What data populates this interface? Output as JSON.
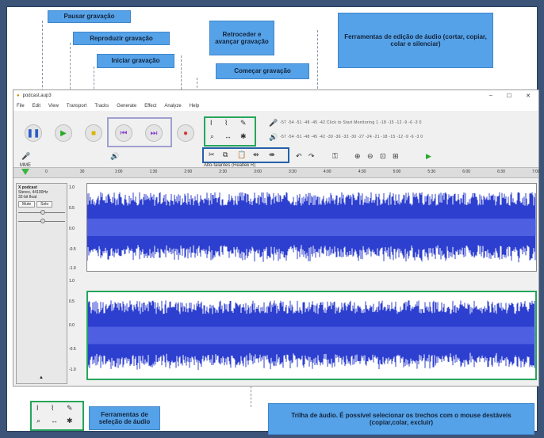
{
  "callouts": {
    "pause": "Pausar gravação",
    "play": "Reproduzir gravação",
    "record": "Iniciar gravação",
    "skip": "Retroceder e avançar gravação",
    "start": "Começar gravação",
    "edit_tools": "Ferramentas de edição de áudio (cortar, copiar, colar e silenciar)",
    "selection_tools": "Ferramentas de seleção de áudio",
    "track_info": "Trilha de áudio. É possível selecionar os trechos com o mouse destáveis (copiar,colar, excluir)"
  },
  "window": {
    "title": "podcast.aup3",
    "controls": [
      "–",
      "☐",
      "✕"
    ]
  },
  "menu": [
    "File",
    "Edit",
    "View",
    "Transport",
    "Tracks",
    "Generate",
    "Effect",
    "Analyze",
    "Help"
  ],
  "device": {
    "host": "MME",
    "output": "Alto-falantes (Realtek R)"
  },
  "meter": {
    "row1": "-57 -54 -51 -48 -45 -42 Click to Start Monitoring 1 -18 -15 -12 -9 -6 -3 0",
    "row2": "-57 -54 -51 -48 -45 -42 -39 -36 -33 -30 -27 -24 -21 -18 -15 -12 -9 -6 -3 0"
  },
  "ruler_ticks": [
    "0",
    "30",
    "1:00",
    "1:30",
    "2:00",
    "2:30",
    "3:00",
    "3:30",
    "4:00",
    "4:30",
    "5:00",
    "5:30",
    "6:00",
    "6:30",
    "7:00"
  ],
  "track": {
    "name": "X podcast",
    "rate": "Stereo, 44100Hz",
    "format": "32-bit float",
    "mute": "Mute",
    "solo": "Solo",
    "scale_top": [
      "1.0",
      "0.5",
      "0.0",
      "-0.5",
      "-1.0"
    ],
    "scale_bottom": [
      "1.0",
      "0.5",
      "0.0",
      "-0.5",
      "-1.0"
    ]
  },
  "colors": {
    "highlight_green": "#26a65b",
    "highlight_blue": "#2460a8",
    "callout_blue": "#56a2e8",
    "waveform": "#2d3fcf"
  }
}
